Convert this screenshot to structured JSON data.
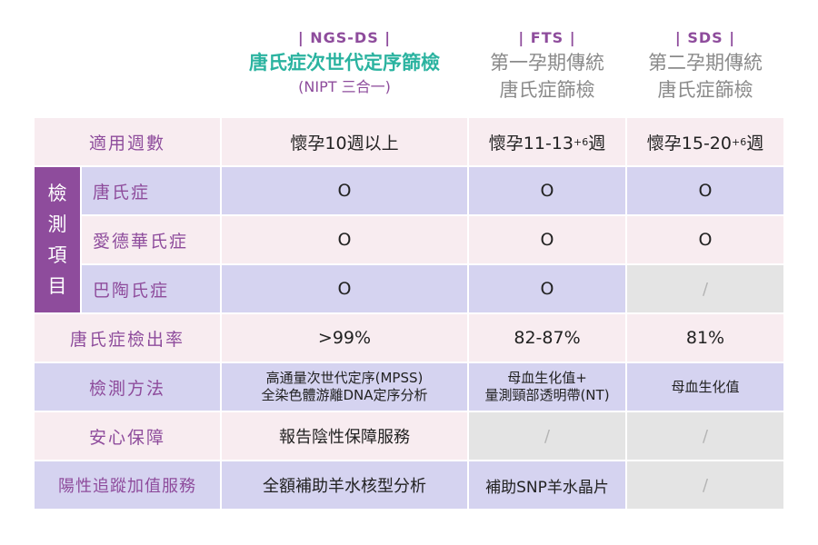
{
  "columns": [
    {
      "tag": "| NGS-DS |",
      "title": "唐氏症次世代定序篩檢",
      "subtitle": "(NIPT 三合一)"
    },
    {
      "tag": "| FTS |",
      "title": "第一孕期傳統",
      "subtitle": "唐氏症篩檢"
    },
    {
      "tag": "| SDS |",
      "title": "第二孕期傳統",
      "subtitle": "唐氏症篩檢"
    }
  ],
  "rows": {
    "weeks": {
      "label": "適用週數",
      "ngs": "懷孕10週以上",
      "fts": {
        "base": "懷孕11-13",
        "sup": "+6",
        "end": "週"
      },
      "sds": {
        "base": "懷孕15-20",
        "sup": "+6",
        "end": "週"
      }
    },
    "detect_group": {
      "chars": [
        "檢",
        "測",
        "項",
        "目"
      ]
    },
    "down": {
      "label": "唐氏症",
      "ngs": "O",
      "fts": "O",
      "sds": "O"
    },
    "edwards": {
      "label": "愛德華氏症",
      "ngs": "O",
      "fts": "O",
      "sds": "O"
    },
    "patau": {
      "label": "巴陶氏症",
      "ngs": "O",
      "fts": "O",
      "sds": "/"
    },
    "rate": {
      "label": "唐氏症檢出率",
      "ngs": ">99%",
      "fts": "82-87%",
      "sds": "81%"
    },
    "method": {
      "label": "檢測方法",
      "ngs": [
        "高通量次世代定序(MPSS)",
        "全染色體游離DNA定序分析"
      ],
      "fts": [
        "母血生化值+",
        "量測頸部透明帶(NT)"
      ],
      "sds": "母血生化值"
    },
    "assurance": {
      "label": "安心保障",
      "ngs": "報告陰性保障服務",
      "fts": "/",
      "sds": "/"
    },
    "followup": {
      "label": "陽性追蹤加值服務",
      "ngs": "全額補助羊水核型分析",
      "fts": "補助SNP羊水晶片",
      "sds": "/"
    }
  },
  "colors": {
    "purple": "#8e4c9c",
    "teal": "#2bb3a0",
    "pink": "#f8ecf0",
    "lavender": "#d5d3f0",
    "gray": "#e4e4e4"
  }
}
